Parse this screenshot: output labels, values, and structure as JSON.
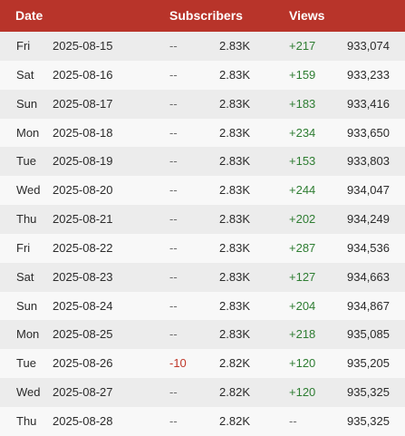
{
  "header": {
    "date_label": "Date",
    "subscribers_label": "Subscribers",
    "views_label": "Views"
  },
  "colors": {
    "header_bg": "#b8342a",
    "positive": "#2e7d32",
    "negative": "#c0392b",
    "neutral": "#6b6b6b"
  },
  "rows": [
    {
      "day": "Fri",
      "date": "2025-08-15",
      "sub_delta": "--",
      "sub_total": "2.83K",
      "view_delta": "+217",
      "view_total": "933,074"
    },
    {
      "day": "Sat",
      "date": "2025-08-16",
      "sub_delta": "--",
      "sub_total": "2.83K",
      "view_delta": "+159",
      "view_total": "933,233"
    },
    {
      "day": "Sun",
      "date": "2025-08-17",
      "sub_delta": "--",
      "sub_total": "2.83K",
      "view_delta": "+183",
      "view_total": "933,416"
    },
    {
      "day": "Mon",
      "date": "2025-08-18",
      "sub_delta": "--",
      "sub_total": "2.83K",
      "view_delta": "+234",
      "view_total": "933,650"
    },
    {
      "day": "Tue",
      "date": "2025-08-19",
      "sub_delta": "--",
      "sub_total": "2.83K",
      "view_delta": "+153",
      "view_total": "933,803"
    },
    {
      "day": "Wed",
      "date": "2025-08-20",
      "sub_delta": "--",
      "sub_total": "2.83K",
      "view_delta": "+244",
      "view_total": "934,047"
    },
    {
      "day": "Thu",
      "date": "2025-08-21",
      "sub_delta": "--",
      "sub_total": "2.83K",
      "view_delta": "+202",
      "view_total": "934,249"
    },
    {
      "day": "Fri",
      "date": "2025-08-22",
      "sub_delta": "--",
      "sub_total": "2.83K",
      "view_delta": "+287",
      "view_total": "934,536"
    },
    {
      "day": "Sat",
      "date": "2025-08-23",
      "sub_delta": "--",
      "sub_total": "2.83K",
      "view_delta": "+127",
      "view_total": "934,663"
    },
    {
      "day": "Sun",
      "date": "2025-08-24",
      "sub_delta": "--",
      "sub_total": "2.83K",
      "view_delta": "+204",
      "view_total": "934,867"
    },
    {
      "day": "Mon",
      "date": "2025-08-25",
      "sub_delta": "--",
      "sub_total": "2.83K",
      "view_delta": "+218",
      "view_total": "935,085"
    },
    {
      "day": "Tue",
      "date": "2025-08-26",
      "sub_delta": "-10",
      "sub_total": "2.82K",
      "view_delta": "+120",
      "view_total": "935,205"
    },
    {
      "day": "Wed",
      "date": "2025-08-27",
      "sub_delta": "--",
      "sub_total": "2.82K",
      "view_delta": "+120",
      "view_total": "935,325"
    },
    {
      "day": "Thu",
      "date": "2025-08-28",
      "sub_delta": "--",
      "sub_total": "2.82K",
      "view_delta": "--",
      "view_total": "935,325"
    }
  ]
}
